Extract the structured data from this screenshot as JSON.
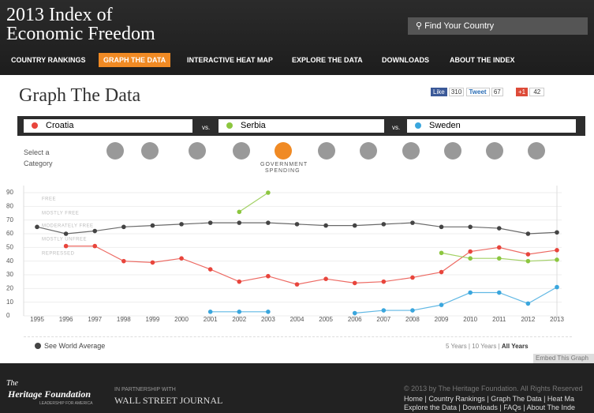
{
  "header": {
    "title_line1": "2013 Index of",
    "title_line2": "Economic Freedom",
    "search": "Find Your Country"
  },
  "nav": [
    "COUNTRY RANKINGS",
    "GRAPH THE DATA",
    "INTERACTIVE HEAT MAP",
    "EXPLORE THE DATA",
    "DOWNLOADS",
    "ABOUT THE INDEX"
  ],
  "page_title": "Graph The Data",
  "social": {
    "like": "Like",
    "like_count": 310,
    "tweet": "Tweet",
    "tweet_count": 67,
    "plus": "+1",
    "plus_count": 42
  },
  "vs": "vs.",
  "category": {
    "prompt_line1": "Select a",
    "prompt_line2": "Category",
    "selected_line1": "GOVERNMENT",
    "selected_line2": "SPENDING"
  },
  "chart_data": {
    "type": "line",
    "x": [
      1995,
      1996,
      1997,
      1998,
      1999,
      2000,
      2001,
      2002,
      2003,
      2004,
      2005,
      2006,
      2007,
      2008,
      2009,
      2010,
      2011,
      2012,
      2013
    ],
    "xlim": [
      1995,
      2013
    ],
    "xticks": [
      1995,
      1996,
      1997,
      1998,
      1999,
      2000,
      2001,
      2002,
      2003,
      2004,
      2005,
      2006,
      2007,
      2008,
      2009,
      2010,
      2011,
      2012,
      2013
    ],
    "ylim": [
      0,
      90
    ],
    "yticks": [
      0,
      10,
      20,
      30,
      40,
      50,
      60,
      70,
      80,
      90
    ],
    "grid": true,
    "bands": [
      "FREE",
      "MOSTLY FREE",
      "MODERATELY FREE",
      "MOSTLY UNFREE",
      "REPRESSED"
    ],
    "average": {
      "name": "See World Average",
      "color": "#444444",
      "values": [
        65,
        60,
        62,
        65,
        66,
        67,
        68,
        68,
        68,
        67,
        66,
        66,
        67,
        68,
        65,
        65,
        64,
        60,
        61
      ]
    },
    "series": [
      {
        "name": "Croatia",
        "color": "#e8453c",
        "values": [
          null,
          51,
          51,
          40,
          39,
          42,
          34,
          25,
          29,
          23,
          27,
          24,
          25,
          28,
          32,
          47,
          50,
          45,
          48
        ]
      },
      {
        "name": "Serbia",
        "color": "#8cc63f",
        "values": [
          null,
          null,
          null,
          null,
          null,
          null,
          null,
          76,
          90,
          null,
          null,
          null,
          null,
          null,
          46,
          42,
          42,
          40,
          41
        ]
      },
      {
        "name": "Sweden",
        "color": "#3aa6dd",
        "values": [
          null,
          null,
          null,
          null,
          null,
          null,
          3,
          3,
          3,
          null,
          null,
          2,
          4,
          4,
          8,
          17,
          17,
          9,
          21
        ]
      }
    ]
  },
  "range_links": {
    "five": "5 Years",
    "sep1": " | ",
    "ten": "10 Years",
    "sep2": " | ",
    "all": "All Years"
  },
  "embed": "Embed This Graph",
  "footer": {
    "org_line1": "The",
    "org_line2": "Heritage Foundation",
    "org_tag": "LEADERSHIP FOR AMERICA",
    "partner": "IN PARTNERSHIP WITH",
    "wsj": "WALL STREET JOURNAL",
    "copyright": "© 2013 by The Heritage Foundation. All Rights Reserved",
    "links1": "Home | Country Rankings | Graph The Data | Heat Ma",
    "links2": "Explore the Data | Downloads | FAQs | About The Inde"
  }
}
